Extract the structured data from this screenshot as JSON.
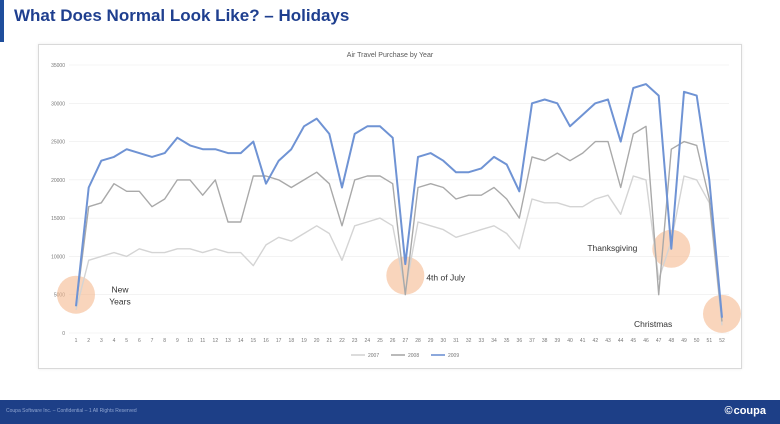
{
  "slide": {
    "title": "What Does Normal Look Like? – Holidays",
    "footer_text": "Coupa Software Inc. – Confidential – 1 All Rights Reserved",
    "brand": "coupa"
  },
  "colors": {
    "title": "#1f3f8f",
    "footer": "#1d3f87",
    "series_2007": "#d4d4d4",
    "series_2008": "#a9a9a9",
    "series_2009": "#6f93d4",
    "highlight": "#f5b98f"
  },
  "chart_data": {
    "type": "line",
    "title": "Air Travel Purchase by Year",
    "xlabel": "",
    "ylabel": "",
    "ylim": [
      0,
      35000
    ],
    "yticks": [
      0,
      5000,
      10000,
      15000,
      20000,
      25000,
      30000,
      35000
    ],
    "grid": "horizontal",
    "legend": "bottom",
    "x": [
      1,
      2,
      3,
      4,
      5,
      6,
      7,
      8,
      9,
      10,
      11,
      12,
      13,
      14,
      15,
      16,
      17,
      18,
      19,
      20,
      21,
      22,
      23,
      24,
      25,
      26,
      27,
      28,
      29,
      30,
      31,
      32,
      33,
      34,
      35,
      36,
      37,
      38,
      39,
      40,
      41,
      42,
      43,
      44,
      45,
      46,
      47,
      48,
      49,
      50,
      51,
      52
    ],
    "series": [
      {
        "name": "2007",
        "color": "#d4d4d4",
        "values": [
          3000,
          9500,
          10000,
          10500,
          10000,
          11000,
          10500,
          10500,
          11000,
          11000,
          10500,
          11000,
          10500,
          10500,
          8800,
          11500,
          12500,
          12000,
          13000,
          14000,
          13000,
          9500,
          14000,
          14500,
          15000,
          14000,
          5500,
          14500,
          14000,
          13500,
          12500,
          13000,
          13500,
          14000,
          13000,
          11000,
          17500,
          17000,
          17000,
          16500,
          16500,
          17500,
          18000,
          15500,
          20500,
          20000,
          7000,
          12000,
          20500,
          20000,
          17000,
          1000
        ]
      },
      {
        "name": "2008",
        "color": "#a9a9a9",
        "values": [
          3500,
          16500,
          17000,
          19500,
          18500,
          18500,
          16500,
          17500,
          20000,
          20000,
          18000,
          20000,
          14500,
          14500,
          20500,
          20500,
          20000,
          19000,
          20000,
          21000,
          19500,
          14000,
          20000,
          20500,
          20500,
          19500,
          5000,
          19000,
          19500,
          19000,
          17500,
          18000,
          18000,
          19000,
          17500,
          15000,
          23000,
          22500,
          23500,
          22500,
          23500,
          25000,
          25000,
          19000,
          26000,
          27000,
          5000,
          24000,
          25000,
          24500,
          17500,
          1500
        ]
      },
      {
        "name": "2009",
        "color": "#6f93d4",
        "values": [
          3500,
          19000,
          22500,
          23000,
          24000,
          23500,
          23000,
          23500,
          25500,
          24500,
          24000,
          24000,
          23500,
          23500,
          25000,
          19500,
          22500,
          24000,
          27000,
          28000,
          26000,
          19000,
          26000,
          27000,
          27000,
          25500,
          9000,
          23000,
          23500,
          22500,
          21000,
          21000,
          21500,
          23000,
          22000,
          18500,
          30000,
          30500,
          30000,
          27000,
          28500,
          30000,
          30500,
          25000,
          32000,
          32500,
          31000,
          11000,
          31500,
          31000,
          20000,
          2000
        ]
      }
    ],
    "annotations": [
      {
        "label": "New Years",
        "x": 1,
        "y": 5000
      },
      {
        "label": "4th of July",
        "x": 27,
        "y": 7500
      },
      {
        "label": "Thanksgiving",
        "x": 48,
        "y": 11000
      },
      {
        "label": "Christmas",
        "x": 52,
        "y": 2500
      }
    ]
  }
}
